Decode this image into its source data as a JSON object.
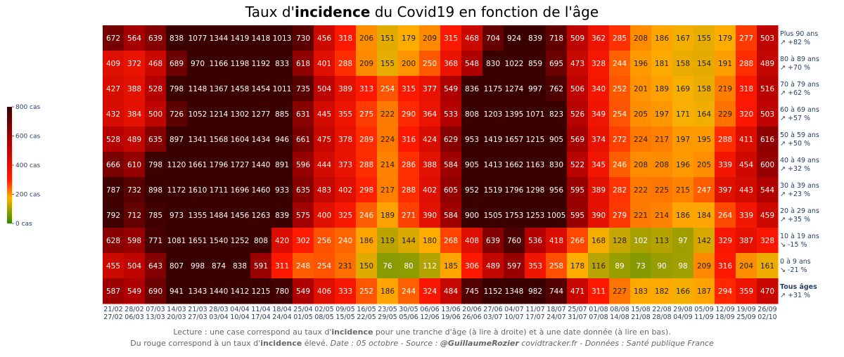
{
  "title": {
    "pre": "Taux d'",
    "bold": "incidence",
    "post": " du Covid19 en fonction de l'âge"
  },
  "footer": {
    "line1_pre": "Lecture : une case correspond au taux d'",
    "line1_bold": "incidence",
    "line1_post": " pour une tranche d'âge (à lire à droite) et à une date donnée (à lire en bas).",
    "line2_pre": "Du rouge correspond à un taux d'",
    "line2_bold": "incidence",
    "line2_mid": " élevé.  ",
    "line2_italic": "Date : 05 octobre - Source : ",
    "line2_handle": "@GuillaumeRozier",
    "line2_end": " covidtracker.fr - Données : Santé publique France"
  },
  "colors": {
    "low": "#2e8b00",
    "mid_low": "#ffb000",
    "mid": "#ff1a00",
    "mid_high": "#b00000",
    "high": "#3a0000",
    "title_text": "#2a3f5f",
    "axis_text": "#2a3f5f"
  },
  "chart_data": {
    "type": "heatmap",
    "zlim": [
      0,
      800
    ],
    "colorbar": {
      "ticks": [
        0,
        200,
        400,
        600,
        800
      ],
      "labels": [
        "0 cas",
        "200 cas",
        "400 cas",
        "600 cas",
        "800 cas"
      ]
    },
    "x": [
      "21/02\n27/02",
      "28/02\n06/03",
      "07/03\n13/03",
      "14/03\n20/03",
      "21/03\n27/03",
      "28/03\n03/04",
      "04/04\n10/04",
      "11/04\n17/04",
      "18/04\n24/04",
      "25/04\n01/05",
      "02/05\n08/05",
      "09/05\n15/05",
      "16/05\n22/05",
      "23/05\n29/05",
      "30/05\n05/06",
      "06/06\n12/06",
      "13/06\n19/06",
      "20/06\n26/06",
      "27/06\n03/07",
      "04/07\n10/07",
      "11/07\n17/07",
      "18/07\n24/07",
      "25/07\n31/07",
      "01/08\n07/08",
      "08/08\n14/08",
      "15/08\n21/08",
      "22/08\n28/08",
      "29/08\n04/09",
      "05/09\n11/09",
      "12/09\n18/09",
      "19/09\n25/09",
      "26/09\n02/10"
    ],
    "rows": [
      {
        "label": "Plus 90 ans",
        "trend": "↗ +82 %",
        "bold": false,
        "values": [
          672,
          564,
          639,
          838,
          1077,
          1344,
          1419,
          1418,
          1013,
          730,
          456,
          318,
          206,
          151,
          179,
          209,
          315,
          468,
          704,
          924,
          839,
          718,
          509,
          362,
          285,
          208,
          186,
          167,
          155,
          179,
          277,
          503
        ]
      },
      {
        "label": "80 à 89 ans",
        "trend": "↗ +70 %",
        "bold": false,
        "values": [
          409,
          372,
          468,
          689,
          970,
          1166,
          1198,
          1192,
          833,
          618,
          401,
          288,
          209,
          155,
          200,
          250,
          368,
          548,
          830,
          1022,
          859,
          695,
          473,
          328,
          244,
          196,
          181,
          158,
          154,
          191,
          288,
          489
        ]
      },
      {
        "label": "70 à 79 ans",
        "trend": "↗ +62 %",
        "bold": false,
        "values": [
          427,
          388,
          528,
          798,
          1148,
          1367,
          1458,
          1454,
          1011,
          735,
          504,
          389,
          313,
          254,
          315,
          377,
          549,
          836,
          1175,
          1274,
          997,
          762,
          506,
          340,
          252,
          201,
          189,
          169,
          158,
          219,
          318,
          516
        ]
      },
      {
        "label": "60 à 69 ans",
        "trend": "↗ +57 %",
        "bold": false,
        "values": [
          432,
          384,
          500,
          726,
          1052,
          1214,
          1302,
          1277,
          885,
          631,
          445,
          355,
          275,
          222,
          290,
          364,
          533,
          808,
          1203,
          1395,
          1071,
          823,
          526,
          349,
          254,
          205,
          197,
          171,
          164,
          229,
          320,
          503
        ]
      },
      {
        "label": "50 à 59 ans",
        "trend": "↗ +50 %",
        "bold": false,
        "values": [
          528,
          489,
          635,
          897,
          1341,
          1568,
          1604,
          1434,
          946,
          661,
          475,
          378,
          289,
          224,
          316,
          424,
          629,
          953,
          1419,
          1657,
          1215,
          905,
          569,
          374,
          272,
          224,
          217,
          197,
          195,
          288,
          411,
          616
        ]
      },
      {
        "label": "40 à 49 ans",
        "trend": "↗ +32 %",
        "bold": false,
        "values": [
          666,
          610,
          798,
          1120,
          1661,
          1796,
          1727,
          1440,
          891,
          596,
          444,
          373,
          288,
          214,
          286,
          388,
          584,
          905,
          1413,
          1662,
          1163,
          830,
          522,
          345,
          246,
          208,
          208,
          196,
          205,
          339,
          454,
          600
        ]
      },
      {
        "label": "30 à 39 ans",
        "trend": "↗ +23 %",
        "bold": false,
        "values": [
          787,
          732,
          898,
          1172,
          1610,
          1711,
          1696,
          1460,
          933,
          635,
          483,
          402,
          298,
          217,
          288,
          402,
          605,
          952,
          1519,
          1796,
          1298,
          956,
          595,
          389,
          282,
          222,
          225,
          215,
          247,
          397,
          443,
          544
        ]
      },
      {
        "label": "20 à 29 ans",
        "trend": "↗ +35 %",
        "bold": false,
        "values": [
          792,
          712,
          785,
          973,
          1355,
          1484,
          1456,
          1263,
          839,
          575,
          400,
          325,
          246,
          189,
          271,
          390,
          584,
          900,
          1505,
          1753,
          1253,
          1005,
          595,
          390,
          279,
          221,
          214,
          186,
          184,
          264,
          339,
          459
        ]
      },
      {
        "label": "10 à 19 ans",
        "trend": "↘ -15 %",
        "bold": false,
        "values": [
          628,
          598,
          771,
          1081,
          1651,
          1540,
          1252,
          808,
          420,
          302,
          256,
          240,
          186,
          119,
          144,
          180,
          268,
          408,
          639,
          760,
          536,
          418,
          266,
          168,
          128,
          102,
          113,
          97,
          142,
          329,
          387,
          328
        ]
      },
      {
        "label": "0 à 9 ans",
        "trend": "↘ -21 %",
        "bold": false,
        "values": [
          455,
          504,
          643,
          807,
          998,
          874,
          838,
          591,
          311,
          248,
          254,
          231,
          150,
          76,
          80,
          112,
          185,
          306,
          489,
          597,
          353,
          258,
          178,
          116,
          89,
          73,
          90,
          98,
          209,
          316,
          204,
          161
        ]
      },
      {
        "label": "Tous âges",
        "trend": "↗ +31 %",
        "bold": true,
        "values": [
          587,
          549,
          690,
          941,
          1343,
          1440,
          1412,
          1215,
          780,
          549,
          406,
          333,
          252,
          186,
          244,
          324,
          484,
          745,
          1152,
          1348,
          982,
          744,
          471,
          311,
          227,
          183,
          182,
          166,
          187,
          294,
          359,
          470
        ]
      }
    ]
  }
}
